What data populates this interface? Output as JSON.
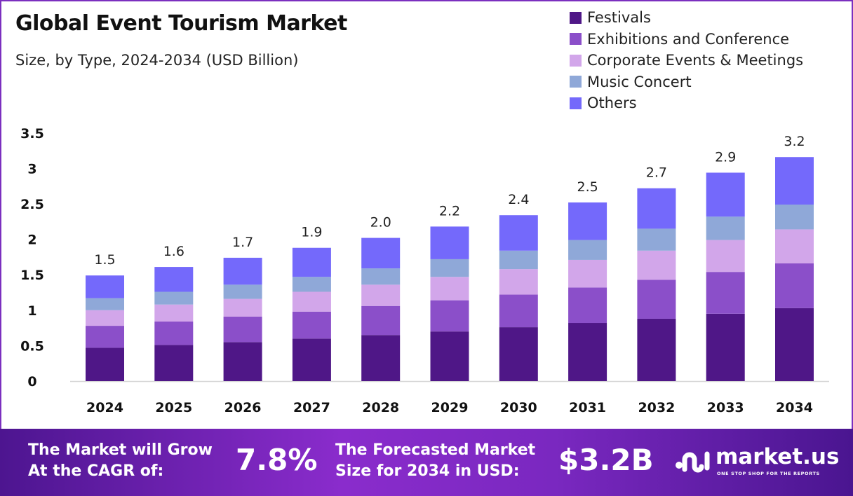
{
  "chart_data": {
    "type": "bar",
    "stacked": true,
    "title": "Global Event Tourism Market",
    "subtitle": "Size, by Type, 2024-2034 (USD Billion)",
    "xlabel": "",
    "ylabel": "",
    "ylim": [
      0,
      3.5
    ],
    "yticks": [
      "0",
      "0.5",
      "1",
      "1.5",
      "2",
      "2.5",
      "3",
      "3.5"
    ],
    "grid": false,
    "legend_position": "top-right",
    "categories": [
      "2024",
      "2025",
      "2026",
      "2027",
      "2028",
      "2029",
      "2030",
      "2031",
      "2032",
      "2033",
      "2034"
    ],
    "series": [
      {
        "name": "Festivals",
        "color": "#4f1787",
        "values": [
          0.47,
          0.51,
          0.55,
          0.6,
          0.65,
          0.7,
          0.76,
          0.82,
          0.88,
          0.95,
          1.03
        ]
      },
      {
        "name": "Exhibitions and Conference",
        "color": "#8b4fc9",
        "values": [
          0.31,
          0.33,
          0.36,
          0.38,
          0.41,
          0.44,
          0.46,
          0.5,
          0.55,
          0.59,
          0.63
        ]
      },
      {
        "name": "Corporate Events & Meetings",
        "color": "#d2a6ea",
        "values": [
          0.22,
          0.24,
          0.25,
          0.28,
          0.3,
          0.33,
          0.36,
          0.39,
          0.41,
          0.45,
          0.48
        ]
      },
      {
        "name": "Music Concert",
        "color": "#8fa8d8",
        "values": [
          0.17,
          0.18,
          0.2,
          0.21,
          0.23,
          0.25,
          0.26,
          0.28,
          0.31,
          0.33,
          0.35
        ]
      },
      {
        "name": "Others",
        "color": "#7469fb",
        "values": [
          0.32,
          0.35,
          0.38,
          0.41,
          0.43,
          0.46,
          0.5,
          0.53,
          0.57,
          0.62,
          0.67
        ]
      }
    ],
    "totals_labels": [
      "1.5",
      "1.6",
      "1.7",
      "1.9",
      "2.0",
      "2.2",
      "2.4",
      "2.5",
      "2.7",
      "2.9",
      "3.2"
    ]
  },
  "banner": {
    "cagr_label_line1": "The Market will Grow",
    "cagr_label_line2": "At the CAGR of:",
    "cagr_value": "7.8%",
    "forecast_label_line1": "The Forecasted Market",
    "forecast_label_line2": "Size for 2034 in USD:",
    "forecast_value": "$3.2B",
    "logo_name": "market.us",
    "logo_tagline": "ONE STOP SHOP FOR THE REPORTS"
  }
}
